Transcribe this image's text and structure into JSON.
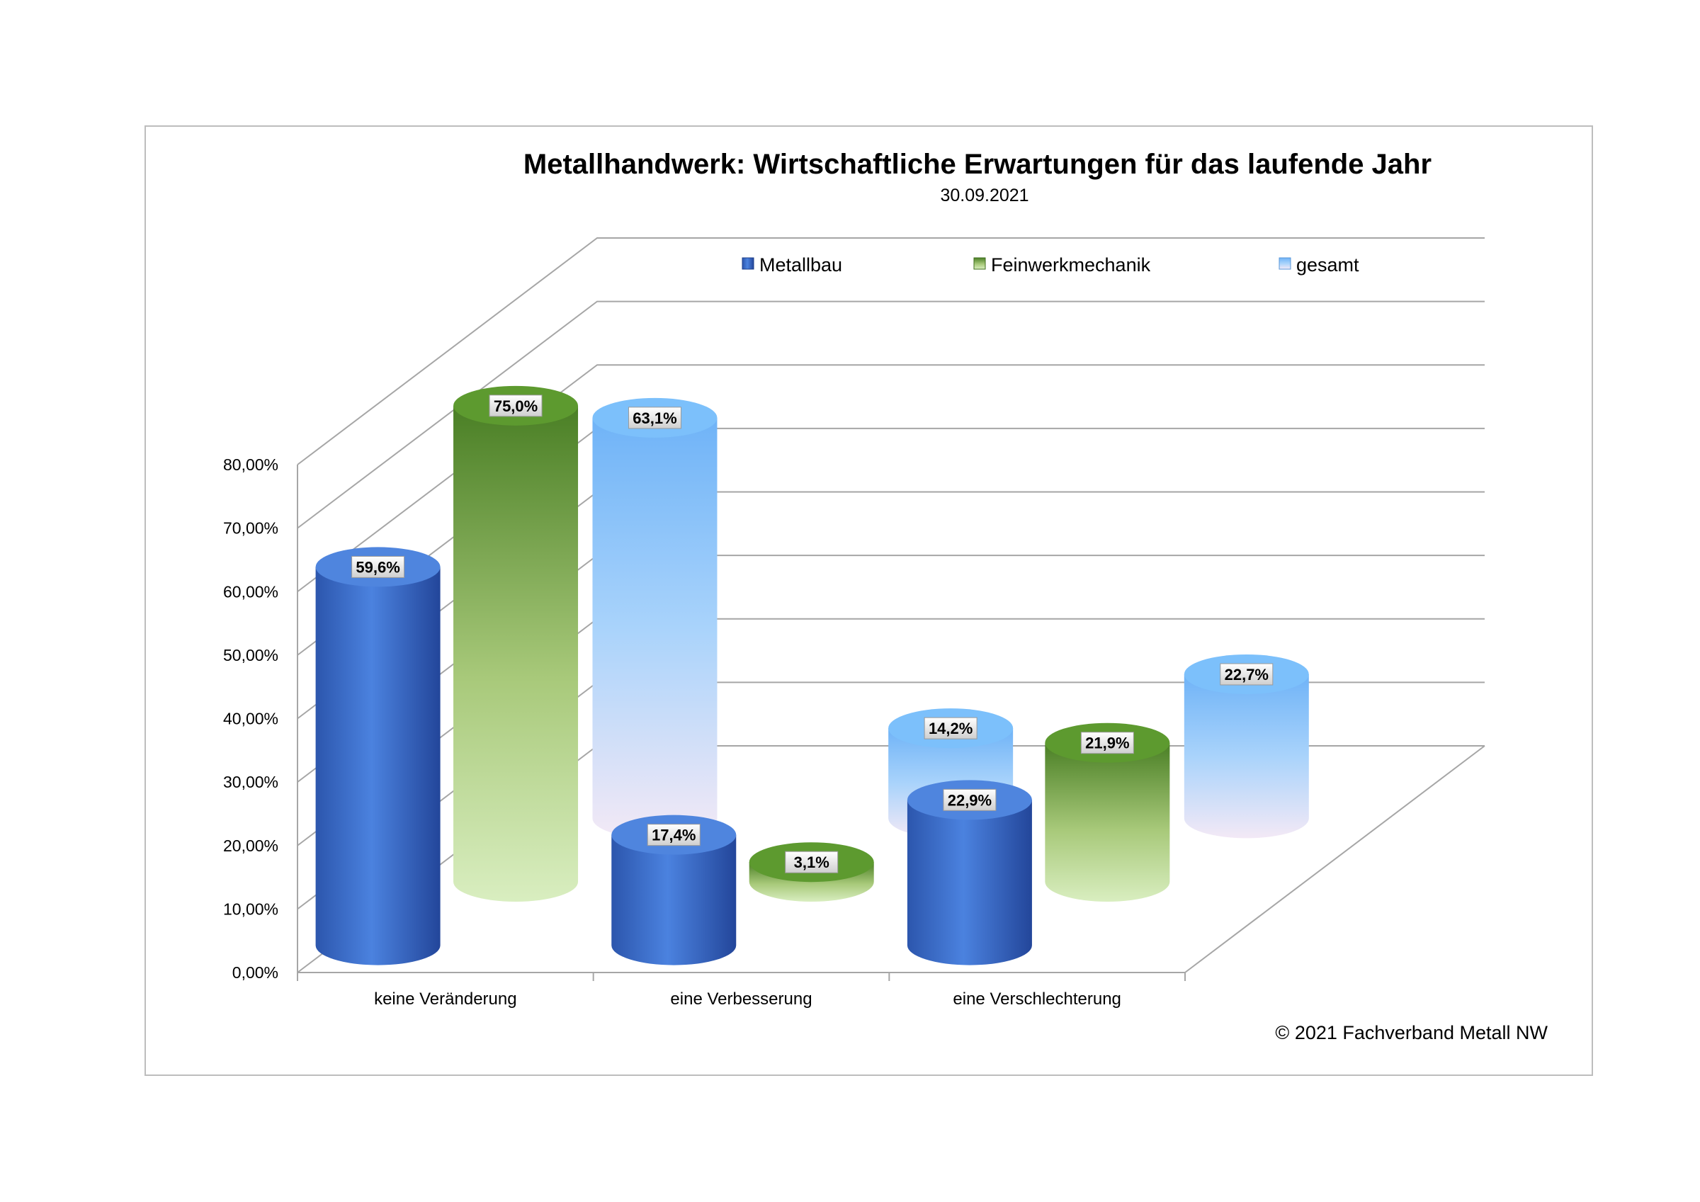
{
  "chart_data": {
    "type": "bar",
    "title": "Metallhandwerk: Wirtschaftliche Erwartungen für das laufende Jahr",
    "subtitle": "30.09.2021",
    "categories": [
      "keine Veränderung",
      "eine Verbesserung",
      "eine Verschlechterung"
    ],
    "series": [
      {
        "name": "Metallbau",
        "values": [
          59.6,
          17.4,
          22.9
        ],
        "labels": [
          "59,6%",
          "17,4%",
          "22,9%"
        ],
        "color": "#3a6fd0"
      },
      {
        "name": "Feinwerkmechanik",
        "values": [
          75.0,
          3.1,
          21.9
        ],
        "labels": [
          "75,0%",
          "3,1%",
          "21,9%"
        ],
        "color": "#6f9b3c"
      },
      {
        "name": "gesamt",
        "values": [
          63.1,
          14.2,
          22.7
        ],
        "labels": [
          "63,1%",
          "14,2%",
          "22,7%"
        ],
        "color": "#7fbcf5"
      }
    ],
    "yticks": [
      "0,00%",
      "10,00%",
      "20,00%",
      "30,00%",
      "40,00%",
      "50,00%",
      "60,00%",
      "70,00%",
      "80,00%"
    ],
    "ylim": [
      0,
      80
    ],
    "grid": true,
    "legend_position": "top",
    "style": "3d-cylinder"
  },
  "footer": {
    "copyright": "© 2021 Fachverband Metall NW"
  }
}
